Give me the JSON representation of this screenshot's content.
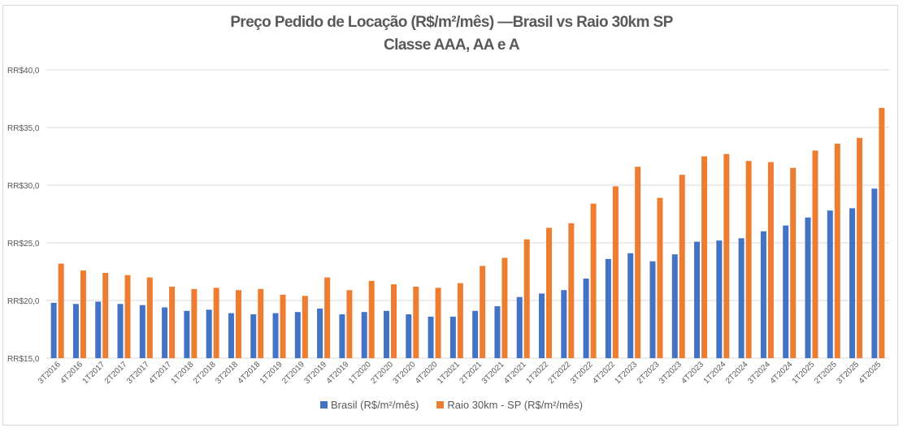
{
  "chart_data": {
    "type": "bar",
    "title": "Preço Pedido de Locação (R$/m²/mês) —Brasil vs Raio 30km SP",
    "subtitle": "Classe AAA, AA e A",
    "xlabel": "",
    "ylabel": "",
    "ylim": [
      15,
      40
    ],
    "yticks": [
      15,
      20,
      25,
      30,
      35,
      40
    ],
    "ytick_labels": [
      "RR$15,0",
      "RR$20,0",
      "RR$25,0",
      "RR$30,0",
      "RR$35,0",
      "RR$40,0"
    ],
    "grid": true,
    "legend_position": "bottom",
    "categories": [
      "3T2016",
      "4T2016",
      "1T2017",
      "2T2017",
      "3T2017",
      "4T2017",
      "1T2018",
      "2T2018",
      "3T2018",
      "4T2018",
      "1T2019",
      "2T2019",
      "3T2019",
      "4T2019",
      "1T2020",
      "2T2020",
      "3T2020",
      "4T2020",
      "1T2021",
      "2T2021",
      "3T2021",
      "4T2021",
      "1T2022",
      "2T2022",
      "3T2022",
      "4T2022",
      "1T2023",
      "2T2023",
      "3T2023",
      "4T2023",
      "1T2024",
      "2T2024",
      "3T2024",
      "4T2024",
      "1T2025",
      "2T2025",
      "3T2025",
      "4T2025"
    ],
    "series": [
      {
        "name": "Brasil (R$/m²/mês)",
        "color": "#4472c4",
        "values": [
          19.8,
          19.7,
          19.9,
          19.7,
          19.6,
          19.4,
          19.1,
          19.2,
          18.9,
          18.8,
          18.9,
          19.0,
          19.3,
          18.8,
          19.0,
          19.1,
          18.8,
          18.6,
          18.6,
          19.1,
          19.5,
          20.3,
          20.6,
          20.9,
          21.9,
          23.6,
          24.1,
          23.4,
          24.0,
          25.1,
          25.2,
          25.4,
          26.0,
          26.5,
          27.2,
          27.8,
          28.0,
          29.7
        ]
      },
      {
        "name": "Raio 30km - SP (R$/m²/mês)",
        "color": "#ed7d31",
        "values": [
          23.2,
          22.6,
          22.4,
          22.2,
          22.0,
          21.2,
          21.0,
          21.1,
          20.9,
          21.0,
          20.5,
          20.4,
          22.0,
          20.9,
          21.7,
          21.4,
          21.2,
          21.1,
          21.5,
          23.0,
          23.7,
          25.3,
          26.3,
          26.7,
          28.4,
          29.9,
          31.6,
          28.9,
          30.9,
          32.5,
          32.7,
          32.1,
          32.0,
          31.5,
          33.0,
          33.6,
          34.1,
          36.7
        ]
      }
    ]
  }
}
